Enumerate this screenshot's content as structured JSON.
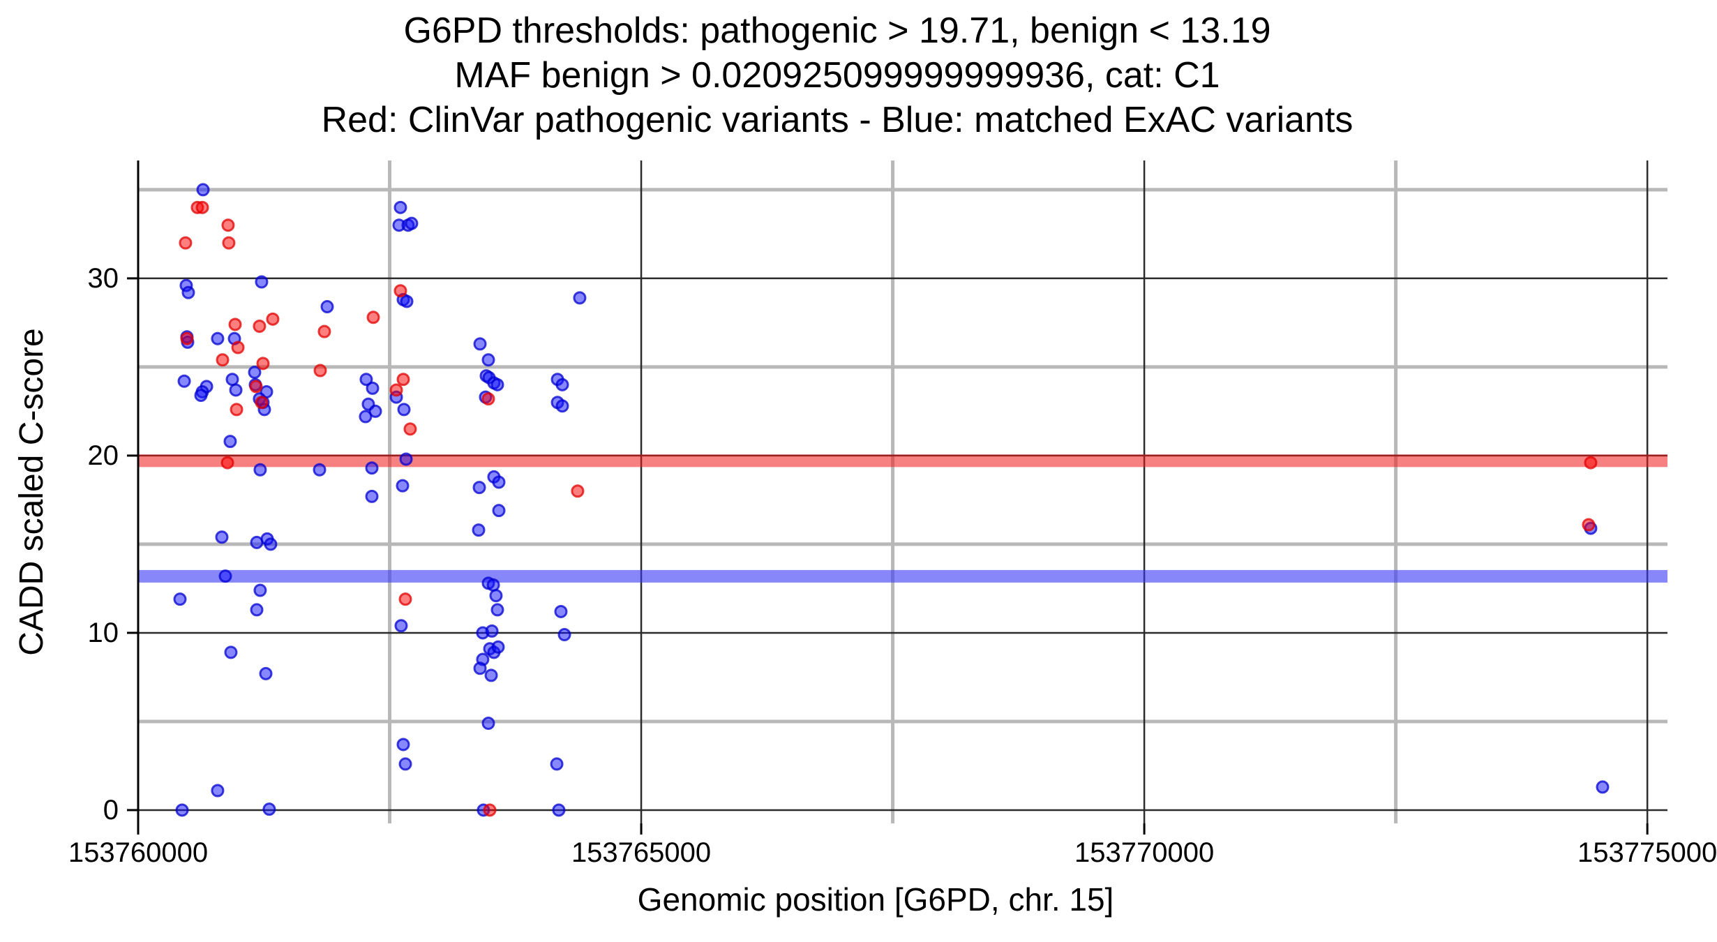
{
  "header": {
    "title_lines": [
      "G6PD thresholds: pathogenic > 19.71, benign < 13.19",
      "MAF benign > 0.020925099999999936, cat: C1",
      "Red: ClinVar pathogenic variants - Blue: matched ExAC variants"
    ]
  },
  "colors": {
    "pathogenic_point_fill": "rgba(255,0,0,0.5)",
    "pathogenic_point_stroke": "rgba(225,0,0,0.75)",
    "exac_point_fill": "rgba(15,15,255,0.5)",
    "exac_point_stroke": "rgba(0,0,210,0.75)",
    "pathogenic_band": "rgba(240,25,25,0.55)",
    "benign_band": "rgba(55,55,245,0.6)",
    "grid_major": "#2b2b2b",
    "grid_minor": "#b8b8b8",
    "axis_line": "#000000"
  },
  "chart_data": {
    "type": "scatter",
    "title": "G6PD thresholds: pathogenic > 19.71, benign < 13.19 | MAF benign > 0.020925099999999936, cat: C1 | Red: ClinVar pathogenic variants - Blue: matched ExAC variants",
    "xlabel": "Genomic position [G6PD, chr. 15]",
    "ylabel": "CADD scaled C-score",
    "xlim": [
      153760000,
      153775200
    ],
    "ylim": [
      -0.75,
      36.65
    ],
    "grid": true,
    "legend_position": "none",
    "x_ticks": [
      153760000,
      153765000,
      153770000,
      153775000
    ],
    "x_tick_labels": [
      "153760000",
      "153765000",
      "153770000",
      "153775000"
    ],
    "x_minor_ticks": [
      153762500,
      153767500,
      153772500
    ],
    "y_ticks": [
      0,
      10,
      20,
      30
    ],
    "y_tick_labels": [
      "0",
      "10",
      "20",
      "30"
    ],
    "y_minor_ticks": [
      5,
      15,
      25,
      35
    ],
    "hlines": [
      {
        "name": "pathogenic-threshold",
        "y": 19.71,
        "color_key": "pathogenic_band",
        "label": "pathogenic > 19.71"
      },
      {
        "name": "benign-threshold",
        "y": 13.19,
        "color_key": "benign_band",
        "label": "benign < 13.19"
      }
    ],
    "series": [
      {
        "name": "matched ExAC variants",
        "color_key_fill": "exac_point_fill",
        "color_key_stroke": "exac_point_stroke",
        "points": [
          [
            153760645,
            35.0
          ],
          [
            153761227,
            29.8
          ],
          [
            153760478,
            29.6
          ],
          [
            153760499,
            29.2
          ],
          [
            153761879,
            28.4
          ],
          [
            153764389,
            28.9
          ],
          [
            153760485,
            26.7
          ],
          [
            153760492,
            26.4
          ],
          [
            153760790,
            26.6
          ],
          [
            153760957,
            26.6
          ],
          [
            153761158,
            24.7
          ],
          [
            153760458,
            24.2
          ],
          [
            153760936,
            24.3
          ],
          [
            153760680,
            23.9
          ],
          [
            153760638,
            23.6
          ],
          [
            153760624,
            23.4
          ],
          [
            153760971,
            23.7
          ],
          [
            153761165,
            24.0
          ],
          [
            153761276,
            23.6
          ],
          [
            153761206,
            23.2
          ],
          [
            153761241,
            23.0
          ],
          [
            153761255,
            22.6
          ],
          [
            153760915,
            20.8
          ],
          [
            153761213,
            19.2
          ],
          [
            153761803,
            19.2
          ],
          [
            153762607,
            34.0
          ],
          [
            153762593,
            33.0
          ],
          [
            153762683,
            33.0
          ],
          [
            153762718,
            33.1
          ],
          [
            153762635,
            28.8
          ],
          [
            153762670,
            28.7
          ],
          [
            153762267,
            24.3
          ],
          [
            153762330,
            23.8
          ],
          [
            153762566,
            23.3
          ],
          [
            153762642,
            22.6
          ],
          [
            153762288,
            22.9
          ],
          [
            153762358,
            22.5
          ],
          [
            153762260,
            22.2
          ],
          [
            153762663,
            19.8
          ],
          [
            153762323,
            19.3
          ],
          [
            153762323,
            17.7
          ],
          [
            153762628,
            18.3
          ],
          [
            153763398,
            26.3
          ],
          [
            153763481,
            25.4
          ],
          [
            153763460,
            24.5
          ],
          [
            153763488,
            24.4
          ],
          [
            153763536,
            24.1
          ],
          [
            153763571,
            24.0
          ],
          [
            153763453,
            23.3
          ],
          [
            153763536,
            18.8
          ],
          [
            153763585,
            18.5
          ],
          [
            153763391,
            18.2
          ],
          [
            153763585,
            16.9
          ],
          [
            153763384,
            15.8
          ],
          [
            153760832,
            15.4
          ],
          [
            153761179,
            15.1
          ],
          [
            153761283,
            15.3
          ],
          [
            153761317,
            15.0
          ],
          [
            153760867,
            13.2
          ],
          [
            153760416,
            11.9
          ],
          [
            153761213,
            12.4
          ],
          [
            153761179,
            11.3
          ],
          [
            153763481,
            12.8
          ],
          [
            153763530,
            12.7
          ],
          [
            153763557,
            12.1
          ],
          [
            153763571,
            11.3
          ],
          [
            153762614,
            10.4
          ],
          [
            153763425,
            10.0
          ],
          [
            153763516,
            10.1
          ],
          [
            153763495,
            9.1
          ],
          [
            153763536,
            8.9
          ],
          [
            153763578,
            9.2
          ],
          [
            153763425,
            8.5
          ],
          [
            153763398,
            8.0
          ],
          [
            153763509,
            7.6
          ],
          [
            153760922,
            8.9
          ],
          [
            153761269,
            7.7
          ],
          [
            153763481,
            4.9
          ],
          [
            153762635,
            3.7
          ],
          [
            153762656,
            2.6
          ],
          [
            153764161,
            2.6
          ],
          [
            153764202,
            11.2
          ],
          [
            153764237,
            9.9
          ],
          [
            153764181,
            0.0
          ],
          [
            153760790,
            1.1
          ],
          [
            153760437,
            0.0
          ],
          [
            153761303,
            0.05
          ],
          [
            153763432,
            0.0
          ],
          [
            153764168,
            24.3
          ],
          [
            153764216,
            24.0
          ],
          [
            153764168,
            23.0
          ],
          [
            153764216,
            22.8
          ],
          [
            153774437,
            15.9
          ],
          [
            153774555,
            1.3
          ]
        ]
      },
      {
        "name": "ClinVar pathogenic variants",
        "color_key_fill": "pathogenic_point_fill",
        "color_key_stroke": "pathogenic_point_stroke",
        "points": [
          [
            153760589,
            34.0
          ],
          [
            153760638,
            34.0
          ],
          [
            153760894,
            33.0
          ],
          [
            153760471,
            32.0
          ],
          [
            153760901,
            32.0
          ],
          [
            153762607,
            29.3
          ],
          [
            153762337,
            27.8
          ],
          [
            153760964,
            27.4
          ],
          [
            153761206,
            27.3
          ],
          [
            153761338,
            27.7
          ],
          [
            153761851,
            27.0
          ],
          [
            153760485,
            26.6
          ],
          [
            153760992,
            26.1
          ],
          [
            153760839,
            25.4
          ],
          [
            153761241,
            25.2
          ],
          [
            153761810,
            24.8
          ],
          [
            153762635,
            24.3
          ],
          [
            153762566,
            23.7
          ],
          [
            153761172,
            23.9
          ],
          [
            153761227,
            23.0
          ],
          [
            153760978,
            22.6
          ],
          [
            153762704,
            21.5
          ],
          [
            153763481,
            23.2
          ],
          [
            153760888,
            19.6
          ],
          [
            153762656,
            11.9
          ],
          [
            153764368,
            18.0
          ],
          [
            153763495,
            0.0
          ],
          [
            153774437,
            19.6
          ],
          [
            153774416,
            16.1
          ]
        ]
      }
    ]
  }
}
